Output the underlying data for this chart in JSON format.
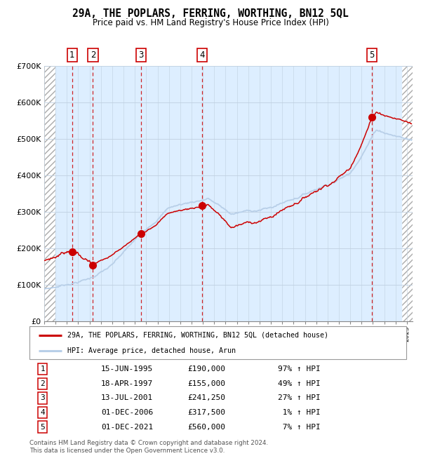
{
  "title": "29A, THE POPLARS, FERRING, WORTHING, BN12 5QL",
  "subtitle": "Price paid vs. HM Land Registry's House Price Index (HPI)",
  "ylim": [
    0,
    700000
  ],
  "yticks": [
    0,
    100000,
    200000,
    300000,
    400000,
    500000,
    600000,
    700000
  ],
  "ytick_labels": [
    "£0",
    "£100K",
    "£200K",
    "£300K",
    "£400K",
    "£500K",
    "£600K",
    "£700K"
  ],
  "sale_dates_num": [
    1995.46,
    1997.3,
    2001.54,
    2006.92,
    2021.92
  ],
  "sale_prices": [
    190000,
    155000,
    241250,
    317500,
    560000
  ],
  "sale_labels": [
    "1",
    "2",
    "3",
    "4",
    "5"
  ],
  "hpi_color": "#b8cfe8",
  "price_color": "#cc0000",
  "dot_color": "#cc0000",
  "vline_color": "#cc0000",
  "bg_panel_color": "#ddeeff",
  "grid_color": "#c0d0e0",
  "legend_entries": [
    "29A, THE POPLARS, FERRING, WORTHING, BN12 5QL (detached house)",
    "HPI: Average price, detached house, Arun"
  ],
  "table_entries": [
    [
      "1",
      "15-JUN-1995",
      "£190,000",
      "97% ↑ HPI"
    ],
    [
      "2",
      "18-APR-1997",
      "£155,000",
      "49% ↑ HPI"
    ],
    [
      "3",
      "13-JUL-2001",
      "£241,250",
      "27% ↑ HPI"
    ],
    [
      "4",
      "01-DEC-2006",
      "£317,500",
      " 1% ↑ HPI"
    ],
    [
      "5",
      "01-DEC-2021",
      "£560,000",
      " 7% ↑ HPI"
    ]
  ],
  "footnote": "Contains HM Land Registry data © Crown copyright and database right 2024.\nThis data is licensed under the Open Government Licence v3.0.",
  "xmin": 1993.0,
  "xmax": 2025.5,
  "hatch_left_end": 1994.0,
  "hatch_right_start": 2024.5
}
